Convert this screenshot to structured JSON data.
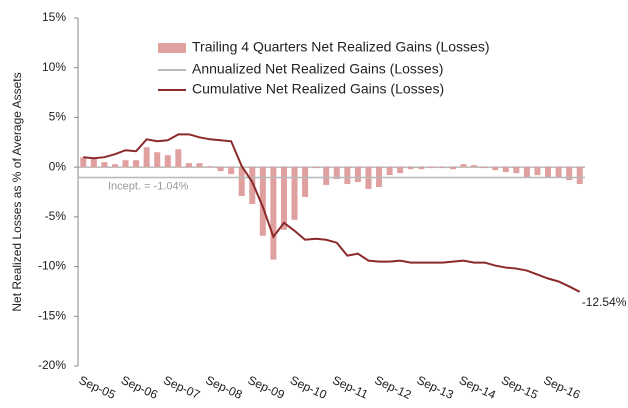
{
  "chart_data": {
    "type": "bar_line",
    "y_axis_label": "Net Realized Losses as % of Average Assets",
    "categories": [
      "Sep-05",
      null,
      null,
      null,
      "Sep-06",
      null,
      null,
      null,
      "Sep-07",
      null,
      null,
      null,
      "Sep-08",
      null,
      null,
      null,
      "Sep-09",
      null,
      null,
      null,
      "Sep-10",
      null,
      null,
      null,
      "Sep-11",
      null,
      null,
      null,
      "Sep-12",
      null,
      null,
      null,
      "Sep-13",
      null,
      null,
      null,
      "Sep-14",
      null,
      null,
      null,
      "Sep-15",
      null,
      null,
      null,
      "Sep-16",
      null,
      null,
      null
    ],
    "series": [
      {
        "name": "Trailing 4 Quarters Net Realized Gains (Losses)",
        "type": "bar",
        "color": "#e0a0a0",
        "values": [
          1.0,
          0.9,
          0.5,
          0.3,
          0.7,
          0.7,
          2.0,
          1.5,
          1.2,
          1.8,
          0.4,
          0.4,
          0.1,
          -0.4,
          -0.7,
          -2.9,
          -3.7,
          -6.9,
          -9.3,
          -6.3,
          -5.3,
          -3.0,
          -0.1,
          -1.8,
          -1.2,
          -1.7,
          -1.5,
          -2.2,
          -2.0,
          -0.8,
          -0.6,
          -0.2,
          -0.2,
          -0.1,
          -0.1,
          -0.2,
          0.3,
          0.2,
          -0.1,
          -0.3,
          -0.5,
          -0.6,
          -1.0,
          -0.8,
          -1.0,
          -1.1,
          -1.3,
          -1.7
        ]
      },
      {
        "name": "Annualized Net Realized Gains (Losses)",
        "type": "hline",
        "color": "#b8b8b8",
        "value": -1.04,
        "value_label": "Incept. = -1.04%"
      },
      {
        "name": "Cumulative Net Realized Gains (Losses)",
        "type": "line",
        "color": "#8b2a2a",
        "values": [
          1.0,
          0.9,
          1.0,
          1.3,
          1.7,
          1.6,
          2.8,
          2.6,
          2.7,
          3.3,
          3.3,
          3.0,
          2.8,
          2.7,
          2.6,
          0.1,
          -1.5,
          -4.0,
          -7.0,
          -5.6,
          -6.4,
          -7.3,
          -7.2,
          -7.3,
          -7.6,
          -8.9,
          -8.7,
          -9.4,
          -9.5,
          -9.5,
          -9.4,
          -9.6,
          -9.6,
          -9.6,
          -9.6,
          -9.5,
          -9.4,
          -9.6,
          -9.6,
          -9.9,
          -10.1,
          -10.2,
          -10.4,
          -10.8,
          -11.2,
          -11.5,
          -12.0,
          -12.54
        ],
        "value_labels": [
          null,
          null,
          null,
          null,
          null,
          null,
          null,
          null,
          null,
          null,
          null,
          null,
          null,
          null,
          null,
          null,
          null,
          null,
          null,
          null,
          null,
          null,
          null,
          null,
          null,
          null,
          null,
          null,
          null,
          null,
          null,
          null,
          null,
          null,
          null,
          null,
          null,
          null,
          null,
          null,
          null,
          null,
          null,
          null,
          null,
          null,
          null,
          "-12.54%"
        ]
      }
    ],
    "ylim": [
      -20,
      15
    ],
    "yticks": [
      {
        "value": -20,
        "label": "-20%"
      },
      {
        "value": -15,
        "label": "-15%"
      },
      {
        "value": -10,
        "label": "-10%"
      },
      {
        "value": -5,
        "label": "-5%"
      },
      {
        "value": 0,
        "label": "0%"
      },
      {
        "value": 5,
        "label": "5%"
      },
      {
        "value": 10,
        "label": "10%"
      },
      {
        "value": 15,
        "label": "15%"
      }
    ],
    "grid": false,
    "legend": "top"
  }
}
